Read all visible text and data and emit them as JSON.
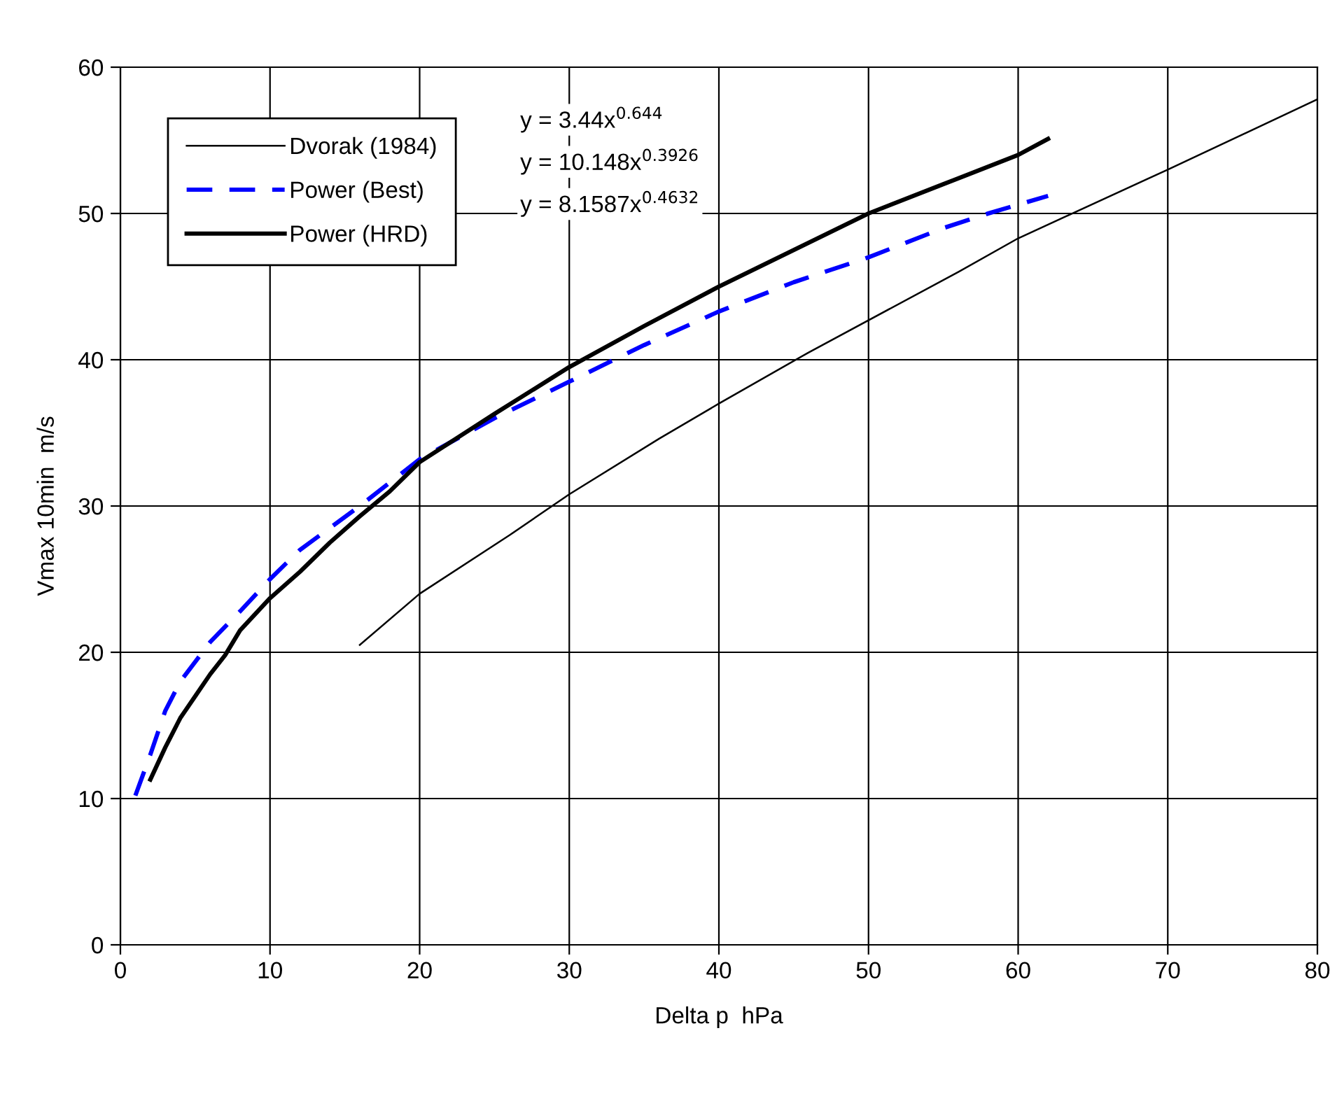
{
  "chart_data": {
    "type": "line",
    "xlabel": "Delta p  hPa",
    "ylabel": "Vmax 10min  m/s",
    "xlim": [
      0,
      80
    ],
    "ylim": [
      0,
      60
    ],
    "xticks": [
      0,
      10,
      20,
      30,
      40,
      50,
      60,
      70,
      80
    ],
    "yticks": [
      0,
      10,
      20,
      30,
      40,
      50,
      60
    ],
    "grid": true,
    "legend": "top left",
    "marker": "none",
    "series": [
      {
        "name": "Dvorak (1984)",
        "color": "#000000",
        "line_style": "solid",
        "x": [
          16,
          20,
          26,
          30,
          36,
          40,
          46,
          56,
          60,
          70,
          80
        ],
        "values": [
          20.5,
          24,
          28,
          30.8,
          34.6,
          37,
          40.5,
          46,
          48.3,
          53,
          57.8
        ]
      },
      {
        "name": "Power (Best)",
        "color": "#0000ff",
        "line_style": "dashed",
        "x": [
          1,
          2,
          3,
          4,
          6,
          8,
          10,
          12,
          14,
          16,
          20,
          25,
          30,
          35,
          40,
          45,
          50,
          55,
          58,
          62
        ],
        "values": [
          10.2,
          13,
          16,
          18,
          20.7,
          22.8,
          25,
          27,
          28.5,
          30,
          33.2,
          36,
          38.5,
          41,
          43.3,
          45.3,
          47,
          49,
          50,
          51.2
        ]
      },
      {
        "name": "Power (HRD)",
        "color": "#000000",
        "line_style": "solid",
        "x": [
          2,
          3,
          4,
          5,
          6,
          7,
          8,
          10,
          12,
          14,
          16,
          18,
          20,
          25,
          30,
          35,
          40,
          45,
          50,
          55,
          60,
          62
        ],
        "values": [
          11.3,
          13.5,
          15.5,
          17,
          18.5,
          19.8,
          21.5,
          23.7,
          25.5,
          27.5,
          29.3,
          31,
          33,
          36.3,
          39.5,
          42.3,
          45,
          47.5,
          50,
          52,
          54,
          55.1
        ]
      }
    ],
    "annotations": [
      "y = 3.44x$^{0.644}$",
      "y = 10.148x$^{0.3926}$",
      "y = 8.1587x$^{0.4632}$"
    ]
  }
}
